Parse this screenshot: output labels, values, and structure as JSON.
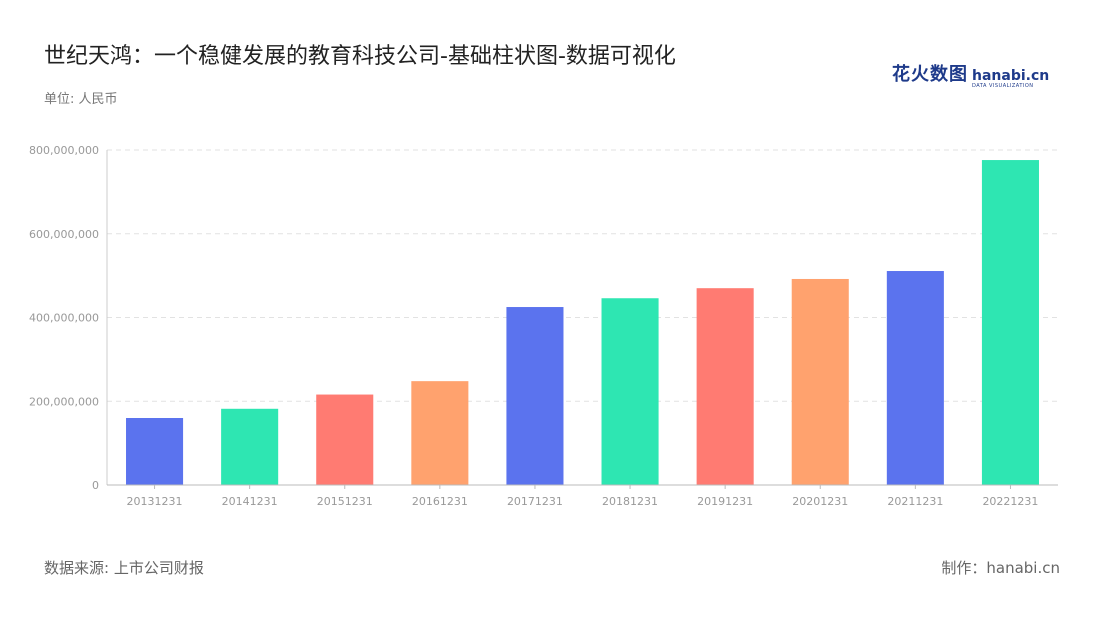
{
  "header": {
    "title": "世纪天鸿：一个稳健发展的教育科技公司-基础柱状图-数据可视化",
    "unit": "单位: 人民币",
    "logo_cn": "花火数图",
    "logo_en": "hanabi.cn",
    "logo_sub": "DATA VISUALIZATION"
  },
  "footer": {
    "source": "数据来源: 上市公司财报",
    "credit": "制作：hanabi.cn"
  },
  "chart_data": {
    "type": "bar",
    "categories": [
      "20131231",
      "20141231",
      "20151231",
      "20161231",
      "20171231",
      "20181231",
      "20191231",
      "20201231",
      "20211231",
      "20221231"
    ],
    "values": [
      160000000,
      182000000,
      216000000,
      248000000,
      425000000,
      446000000,
      470000000,
      492000000,
      511000000,
      776000000
    ],
    "ylim": [
      0,
      800000000
    ],
    "yticks": [
      0,
      200000000,
      400000000,
      600000000,
      800000000
    ],
    "ytick_labels": [
      "0",
      "200,000,000",
      "400,000,000",
      "600,000,000",
      "800,000,000"
    ],
    "colors": [
      "#5b73ee",
      "#2ee6b2",
      "#ff7b72",
      "#ffa26e"
    ],
    "grid": true,
    "legend": "none"
  }
}
